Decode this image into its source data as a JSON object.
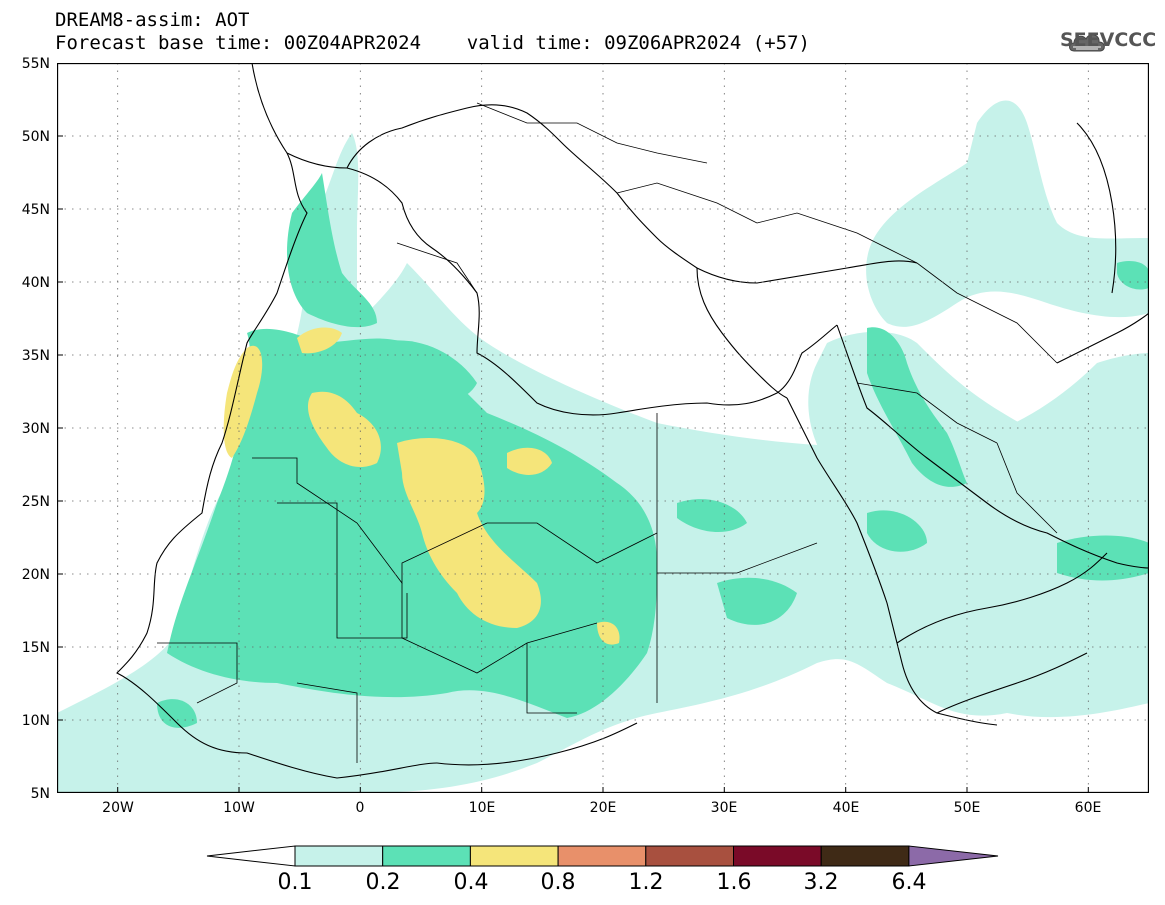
{
  "title": {
    "line1": "DREAM8-assim: AOT",
    "line2": "Forecast base time: 00Z04APR2024    valid time: 09Z06APR2024 (+57)"
  },
  "logo": {
    "text": "SEEVCCC",
    "icon": "cloud-icon"
  },
  "map": {
    "lon_range": [
      -25,
      65
    ],
    "lat_range": [
      5,
      55
    ],
    "y_tick_labels": [
      "55N",
      "50N",
      "45N",
      "40N",
      "35N",
      "30N",
      "25N",
      "20N",
      "15N",
      "10N",
      "5N"
    ],
    "x_tick_labels": [
      "20W",
      "10W",
      "0",
      "10E",
      "20E",
      "30E",
      "40E",
      "50E",
      "60E"
    ],
    "grid": "dotted"
  },
  "colorbar": {
    "labels": [
      "0.1",
      "0.2",
      "0.4",
      "0.8",
      "1.2",
      "1.6",
      "3.2",
      "6.4"
    ],
    "colors": [
      "#c6f2ea",
      "#5ce1b6",
      "#f5e57a",
      "#e8906a",
      "#a8503f",
      "#7a0a28",
      "#3f2a16",
      "#8c6aa8"
    ],
    "left_arrow_color": "#ffffff",
    "right_arrow_color": "#8c6aa8"
  }
}
